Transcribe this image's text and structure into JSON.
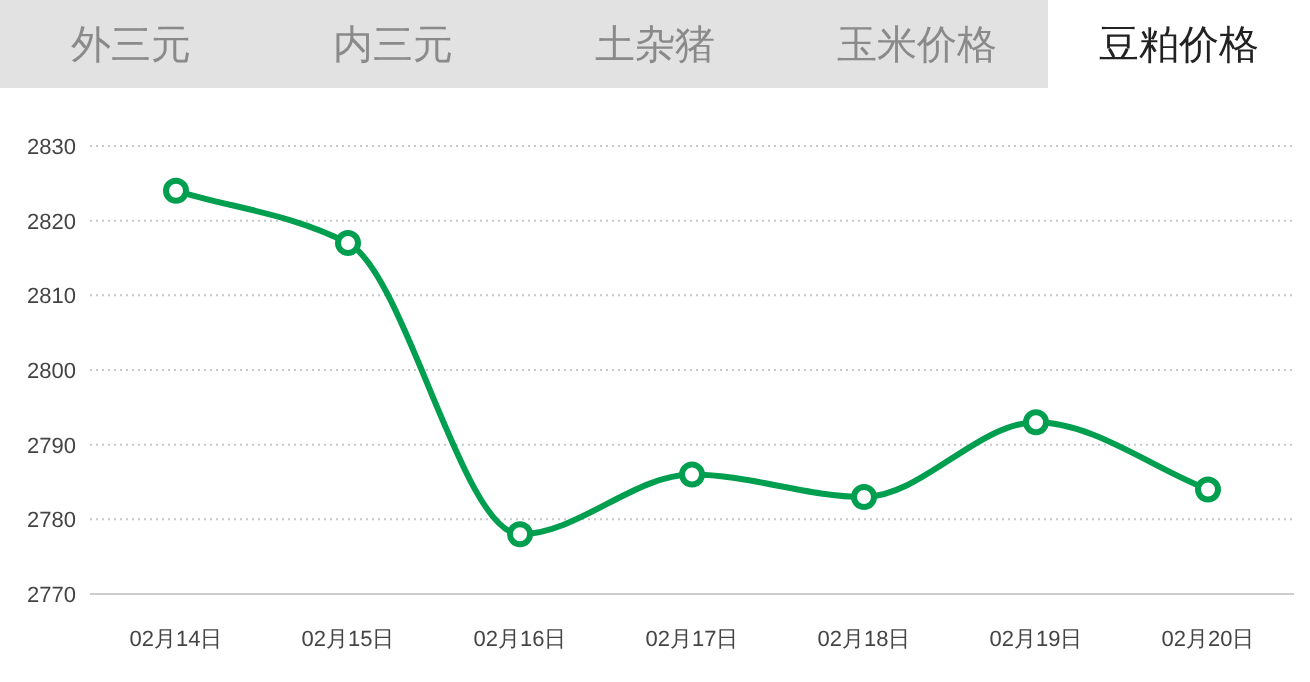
{
  "chart_data": {
    "type": "line",
    "title": "豆粕价格",
    "annotations": [
      "外三元",
      "内三元",
      "土杂猪",
      "玉米价格"
    ],
    "categories": [
      "02月14日",
      "02月15日",
      "02月16日",
      "02月17日",
      "02月18日",
      "02月19日",
      "02月20日"
    ],
    "series": [
      {
        "color": "#009e4f",
        "values": [
          2824,
          2817,
          2778,
          2786,
          2783,
          2793,
          2784
        ]
      }
    ],
    "ylim": [
      2770,
      2830
    ],
    "yticks": [
      2770,
      2780,
      2790,
      2800,
      2810,
      2820,
      2830
    ],
    "grid": "y",
    "marker": "circle",
    "line_style": "solid"
  }
}
